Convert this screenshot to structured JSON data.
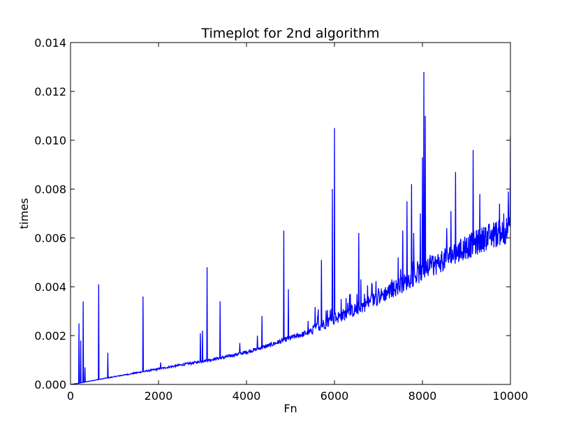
{
  "chart_data": {
    "type": "line",
    "title": "Timeplot for 2nd algorithm",
    "xlabel": "Fn",
    "ylabel": "times",
    "xlim": [
      0,
      10000
    ],
    "ylim": [
      0,
      0.014
    ],
    "xticks": [
      0,
      2000,
      4000,
      6000,
      8000,
      10000
    ],
    "xtick_labels": [
      "0",
      "2000",
      "4000",
      "6000",
      "8000",
      "10000"
    ],
    "yticks": [
      0,
      0.002,
      0.004,
      0.006,
      0.008,
      0.01,
      0.012,
      0.014
    ],
    "ytick_labels": [
      "0.000",
      "0.002",
      "0.004",
      "0.006",
      "0.008",
      "0.010",
      "0.012",
      "0.014"
    ],
    "grid": false,
    "line_color": "#0000ff",
    "series": [
      {
        "baseline_points": [
          [
            0,
            0.0
          ],
          [
            200,
            5e-05
          ],
          [
            500,
            0.00015
          ],
          [
            1000,
            0.0003
          ],
          [
            1500,
            0.00045
          ],
          [
            2000,
            0.0006
          ],
          [
            2500,
            0.00075
          ],
          [
            3000,
            0.0009
          ],
          [
            3500,
            0.00105
          ],
          [
            4000,
            0.00125
          ],
          [
            4500,
            0.0015
          ],
          [
            5000,
            0.0018
          ],
          [
            5500,
            0.00205
          ],
          [
            6000,
            0.00245
          ],
          [
            6500,
            0.0028
          ],
          [
            7000,
            0.00325
          ],
          [
            7500,
            0.0037
          ],
          [
            8000,
            0.0042
          ],
          [
            8500,
            0.00465
          ],
          [
            9000,
            0.0051
          ],
          [
            9500,
            0.0055
          ],
          [
            10000,
            0.0058
          ]
        ],
        "spikes": [
          [
            190,
            0.0025
          ],
          [
            230,
            0.0018
          ],
          [
            290,
            0.0034
          ],
          [
            330,
            0.0007
          ],
          [
            640,
            0.0041
          ],
          [
            850,
            0.0013
          ],
          [
            1650,
            0.0036
          ],
          [
            2050,
            0.0009
          ],
          [
            2950,
            0.0021
          ],
          [
            3000,
            0.0022
          ],
          [
            3100,
            0.0048
          ],
          [
            3400,
            0.0034
          ],
          [
            3850,
            0.0017
          ],
          [
            4250,
            0.002
          ],
          [
            4350,
            0.0028
          ],
          [
            4850,
            0.0063
          ],
          [
            4950,
            0.0039
          ],
          [
            5400,
            0.0026
          ],
          [
            5700,
            0.0051
          ],
          [
            5950,
            0.008
          ],
          [
            6000,
            0.0105
          ],
          [
            6150,
            0.0035
          ],
          [
            6550,
            0.0062
          ],
          [
            6600,
            0.0043
          ],
          [
            7100,
            0.0037
          ],
          [
            7300,
            0.0043
          ],
          [
            7450,
            0.0052
          ],
          [
            7550,
            0.0063
          ],
          [
            7650,
            0.0075
          ],
          [
            7750,
            0.0082
          ],
          [
            7800,
            0.0062
          ],
          [
            7950,
            0.007
          ],
          [
            8000,
            0.0093
          ],
          [
            8030,
            0.0128
          ],
          [
            8060,
            0.011
          ],
          [
            8200,
            0.005
          ],
          [
            8550,
            0.0064
          ],
          [
            8650,
            0.0071
          ],
          [
            8750,
            0.0087
          ],
          [
            9000,
            0.006
          ],
          [
            9150,
            0.0096
          ],
          [
            9300,
            0.0078
          ],
          [
            9550,
            0.0061
          ],
          [
            9750,
            0.0074
          ],
          [
            9850,
            0.007
          ],
          [
            9950,
            0.0079
          ],
          [
            10000,
            0.0102
          ]
        ]
      }
    ]
  }
}
